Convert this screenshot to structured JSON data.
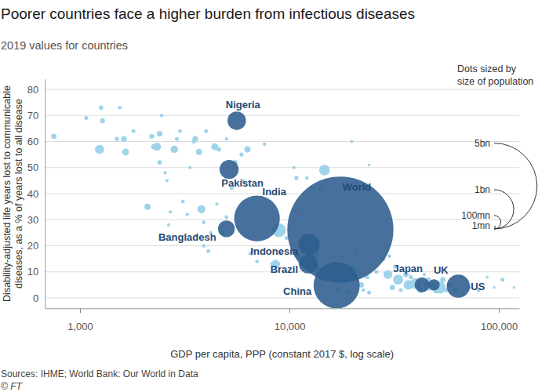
{
  "chart_data": {
    "type": "scatter",
    "title": "Poorer countries face a higher burden from infectious diseases",
    "subtitle": "2019 values for countries",
    "x_label": "GDP per capita, PPP (constant 2017 $, log scale)",
    "y_label": [
      "Disability-adjusted life years lost to communicable",
      "diseases, as a % of years lost to all disease"
    ],
    "source": "Sources: IHME; World Bank: Our World in Data",
    "credit": "© FT",
    "log": "x",
    "grid": true,
    "xlim": [
      680,
      125000
    ],
    "xticks": [
      {
        "value": 1000,
        "label": "1,000"
      },
      {
        "value": 10000,
        "label": "10,000"
      },
      {
        "value": 100000,
        "label": "100,000"
      }
    ],
    "ylim": [
      -4,
      84
    ],
    "yticks": [
      0,
      10,
      20,
      30,
      40,
      50,
      60,
      70,
      80
    ],
    "size_legend": {
      "title": [
        "Dots sized by",
        "size of population"
      ],
      "values": [
        5000,
        1000,
        100,
        1
      ],
      "labels": [
        "5bn",
        "1bn",
        "100mn",
        "1mn"
      ]
    },
    "series": [
      {
        "color": "#9fd3ea",
        "x": [
          750,
          1070,
          1240,
          1260,
          1280,
          1500,
          1550,
          1620,
          1650,
          1800,
          2100,
          2200,
          2250,
          2330,
          2400,
          2450,
          2400,
          2550,
          2600,
          2650,
          2820,
          2900,
          3000,
          3100,
          3250,
          3350,
          3500,
          3550,
          3600,
          3700,
          3800,
          3900,
          4000,
          4100,
          4200,
          4400,
          4600,
          4800,
          5000,
          5300,
          5500,
          5900,
          6000,
          6300,
          6500,
          6700,
          7000,
          7600,
          8300,
          8900,
          8600,
          9000,
          10500,
          10800,
          12100,
          14000,
          14700,
          11000,
          11500,
          12500,
          13000,
          13500,
          14000,
          14500,
          15500,
          16000,
          17000,
          18000,
          19000,
          19800,
          20000,
          21000,
          22000,
          22500,
          23500,
          24000,
          24000,
          26000,
          28000,
          29500,
          30000,
          31000,
          32000,
          33000,
          34000,
          36000,
          37000,
          38000,
          40000,
          42000,
          44000,
          46000,
          46500,
          50000,
          52000,
          54000,
          56000,
          58000,
          62000,
          66000,
          72000,
          80000,
          88000,
          95000,
          104000,
          118000,
          9700,
          11500,
          2700,
          5000,
          3900,
          4500
        ],
        "values": [
          62,
          69,
          57,
          73,
          68,
          61,
          73,
          61,
          56,
          64,
          35,
          62,
          58,
          58,
          63,
          70,
          52,
          48,
          45,
          28,
          57,
          61,
          64,
          37,
          32,
          50,
          60,
          61,
          24,
          56,
          34,
          29,
          64,
          18,
          25,
          58,
          57,
          25,
          61,
          42,
          52,
          55,
          45,
          57,
          17,
          18,
          14,
          59,
          13,
          26,
          13,
          17,
          50,
          46,
          46,
          42,
          49,
          16,
          14,
          13,
          17,
          12,
          10,
          8,
          10,
          13,
          3,
          7,
          2,
          60,
          11,
          18,
          5,
          3,
          8,
          2,
          51,
          10,
          15,
          9,
          16,
          4,
          12,
          7,
          3,
          9,
          5,
          8,
          5.5,
          3,
          9,
          7,
          5,
          3,
          4,
          7,
          3,
          5,
          3,
          8,
          4,
          3,
          8,
          4,
          7,
          4,
          23,
          34,
          33,
          31,
          20,
          36
        ],
        "sizes": [
          10,
          4,
          40,
          6,
          8,
          5,
          3,
          12,
          20,
          4,
          15,
          8,
          9,
          30,
          12,
          3,
          6,
          2,
          2,
          2,
          25,
          4,
          3,
          3,
          2,
          2,
          5,
          12,
          2,
          15,
          30,
          3,
          4,
          4,
          2,
          20,
          6,
          4,
          2,
          3,
          8,
          4,
          2,
          15,
          3,
          2,
          3,
          3,
          6,
          108,
          35,
          2,
          2,
          5,
          3,
          4,
          58,
          8,
          30,
          15,
          60,
          10,
          50,
          30,
          20,
          8,
          6,
          40,
          10,
          2,
          35,
          3,
          10,
          3,
          5,
          4,
          1,
          4,
          6,
          38,
          3,
          10,
          5,
          50,
          4,
          10,
          47,
          5,
          60,
          10,
          2,
          6,
          65,
          17,
          83,
          10,
          5,
          9,
          9,
          5,
          5,
          4,
          1,
          1,
          4,
          1,
          4,
          2,
          2,
          3,
          3,
          2
        ]
      },
      {
        "color": "#2e5d8e",
        "x": [
          17500,
          7000,
          16800,
          5600,
          5150,
          5000,
          12400,
          12300,
          43000,
          49000,
          64000
        ],
        "values": [
          26.2,
          30.5,
          4.8,
          68,
          49.3,
          26.5,
          20.5,
          13,
          5,
          5,
          4.5
        ],
        "sizes": [
          7700,
          1366,
          1398,
          201,
          217,
          163,
          270,
          211,
          126,
          67,
          328
        ],
        "labels": [
          "World",
          "India",
          "China",
          "Nigeria",
          "Pakistan",
          "Bangladesh",
          "Indonesia",
          "Brazil",
          "Japan",
          "UK",
          "US"
        ]
      }
    ]
  }
}
